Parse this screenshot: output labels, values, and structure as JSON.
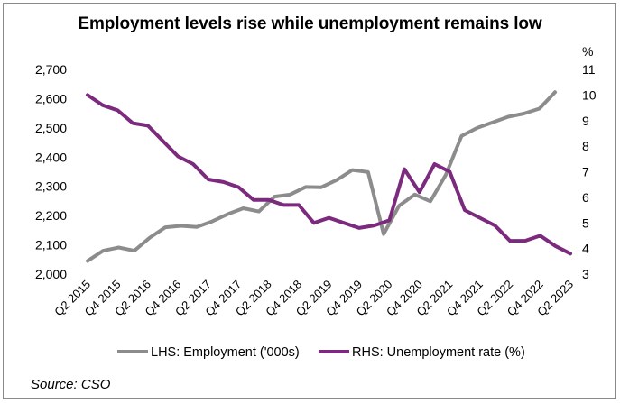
{
  "chart_data": {
    "type": "line",
    "title": "Employment levels rise while unemployment remains low",
    "source": "Source: CSO",
    "right_axis_unit": "%",
    "left_axis": {
      "ylim": [
        2000,
        2700
      ],
      "ticks": [
        "2,000",
        "2,100",
        "2,200",
        "2,300",
        "2,400",
        "2,500",
        "2,600",
        "2,700"
      ]
    },
    "right_axis": {
      "ylim": [
        3,
        11
      ],
      "ticks": [
        "3",
        "4",
        "5",
        "6",
        "7",
        "8",
        "9",
        "10",
        "11"
      ]
    },
    "x_tick_labels": [
      "Q2 2015",
      "Q4 2015",
      "Q2 2016",
      "Q4 2016",
      "Q2 2017",
      "Q4 2017",
      "Q2 2018",
      "Q4 2018",
      "Q2 2019",
      "Q4 2019",
      "Q2 2020",
      "Q4 2020",
      "Q2 2021",
      "Q4 2021",
      "Q2 2022",
      "Q4 2022",
      "Q2 2023"
    ],
    "grid": false,
    "legend_position": "bottom",
    "series": [
      {
        "name": "LHS: Employment ('000s)",
        "axis": "left",
        "color": "#8c8c8c",
        "values": [
          2045,
          2080,
          2091,
          2080,
          2125,
          2160,
          2165,
          2161,
          2180,
          2205,
          2225,
          2214,
          2265,
          2272,
          2298,
          2297,
          2322,
          2356,
          2349,
          2137,
          2234,
          2272,
          2249,
          2340,
          2472,
          2500,
          2519,
          2538,
          2549,
          2566,
          2622
        ]
      },
      {
        "name": "RHS: Unemployment rate (%)",
        "axis": "right",
        "color": "#7b2a7d",
        "values": [
          10.0,
          9.6,
          9.4,
          8.9,
          8.8,
          8.2,
          7.6,
          7.3,
          6.7,
          6.6,
          6.4,
          5.9,
          5.9,
          5.7,
          5.7,
          5.0,
          5.2,
          5.0,
          4.8,
          4.9,
          5.1,
          7.1,
          6.2,
          7.3,
          7.0,
          5.5,
          5.2,
          4.9,
          4.3,
          4.3,
          4.5,
          4.1,
          3.8
        ]
      }
    ]
  }
}
